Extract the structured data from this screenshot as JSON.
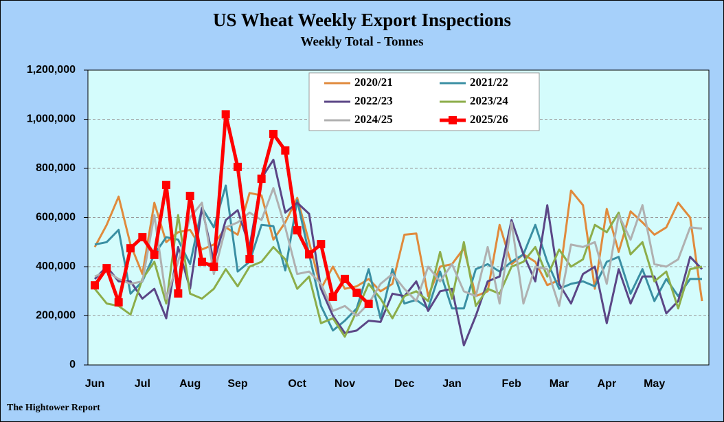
{
  "chart_data": {
    "type": "line",
    "title": "US Wheat Weekly Export Inspections",
    "subtitle": "Weekly Total - Tonnes",
    "source": "The Hightower Report",
    "categories": [
      "Jun",
      null,
      null,
      null,
      "Jul",
      null,
      null,
      null,
      "Aug",
      null,
      null,
      null,
      "Sep",
      null,
      null,
      null,
      null,
      "Oct",
      null,
      null,
      null,
      "Nov",
      null,
      null,
      null,
      null,
      "Dec",
      null,
      null,
      null,
      "Jan",
      null,
      null,
      null,
      null,
      "Feb",
      null,
      null,
      null,
      "Mar",
      null,
      null,
      null,
      "Apr",
      null,
      null,
      null,
      "May",
      null,
      null,
      null,
      null
    ],
    "ylim": [
      0,
      1200000
    ],
    "yticks": [
      0,
      {
        "value": 200000,
        "label": "200,000"
      },
      {
        "value": 400000,
        "label": "400,000"
      },
      {
        "value": 600000,
        "label": "600,000"
      },
      {
        "value": 800000,
        "label": "800,000"
      },
      {
        "value": 1000000,
        "label": "1,000,000"
      },
      {
        "value": 1200000,
        "label": "1,200,000"
      }
    ],
    "grid": true,
    "legend": "top",
    "series": [
      {
        "name": "2020/21",
        "color": "#e08a3c",
        "values": [
          480000,
          570000,
          685000,
          490000,
          370000,
          660000,
          500000,
          540000,
          550000,
          470000,
          490000,
          560000,
          530000,
          700000,
          690000,
          510000,
          580000,
          680000,
          500000,
          310000,
          400000,
          310000,
          320000,
          350000,
          300000,
          330000,
          530000,
          535000,
          280000,
          400000,
          410000,
          475000,
          280000,
          300000,
          570000,
          410000,
          450000,
          420000,
          325000,
          345000,
          710000,
          650000,
          310000,
          635000,
          460000,
          625000,
          580000,
          530000,
          560000,
          660000,
          600000,
          260000
        ]
      },
      {
        "name": "2021/22",
        "color": "#3a8fa3",
        "values": [
          490000,
          500000,
          550000,
          290000,
          340000,
          450000,
          520000,
          510000,
          410000,
          640000,
          560000,
          730000,
          380000,
          420000,
          570000,
          565000,
          385000,
          670000,
          450000,
          240000,
          140000,
          180000,
          230000,
          390000,
          190000,
          390000,
          250000,
          265000,
          230000,
          380000,
          230000,
          230000,
          390000,
          410000,
          380000,
          420000,
          450000,
          570000,
          420000,
          310000,
          330000,
          340000,
          320000,
          420000,
          440000,
          290000,
          390000,
          260000,
          350000,
          280000,
          350000,
          350000
        ]
      },
      {
        "name": "2022/23",
        "color": "#5b4686",
        "values": [
          350000,
          400000,
          340000,
          340000,
          270000,
          310000,
          190000,
          480000,
          310000,
          640000,
          420000,
          590000,
          630000,
          480000,
          760000,
          835000,
          620000,
          660000,
          615000,
          310000,
          200000,
          130000,
          140000,
          180000,
          175000,
          290000,
          280000,
          340000,
          220000,
          300000,
          310000,
          80000,
          200000,
          340000,
          360000,
          590000,
          450000,
          340000,
          650000,
          330000,
          250000,
          370000,
          400000,
          170000,
          390000,
          250000,
          360000,
          360000,
          210000,
          260000,
          440000,
          390000
        ]
      },
      {
        "name": "2023/24",
        "color": "#8cad4a",
        "values": [
          310000,
          250000,
          240000,
          205000,
          350000,
          420000,
          250000,
          610000,
          290000,
          270000,
          310000,
          390000,
          320000,
          400000,
          420000,
          480000,
          430000,
          310000,
          360000,
          170000,
          190000,
          115000,
          220000,
          330000,
          270000,
          190000,
          280000,
          300000,
          260000,
          460000,
          270000,
          500000,
          240000,
          310000,
          290000,
          400000,
          420000,
          480000,
          360000,
          470000,
          400000,
          430000,
          570000,
          540000,
          620000,
          450000,
          500000,
          340000,
          380000,
          230000,
          390000,
          400000
        ]
      },
      {
        "name": "2024/25",
        "color": "#b0b0b0",
        "values": [
          360000,
          380000,
          350000,
          330000,
          340000,
          610000,
          270000,
          420000,
          600000,
          660000,
          370000,
          560000,
          580000,
          620000,
          590000,
          720000,
          560000,
          370000,
          380000,
          330000,
          220000,
          240000,
          200000,
          250000,
          330000,
          370000,
          310000,
          260000,
          400000,
          340000,
          410000,
          300000,
          280000,
          480000,
          250000,
          580000,
          250000,
          400000,
          390000,
          240000,
          490000,
          480000,
          500000,
          330000,
          610000,
          510000,
          650000,
          410000,
          400000,
          430000,
          560000,
          555000
        ]
      },
      {
        "name": "2025/26",
        "color": "#ff0000",
        "values": [
          324000,
          394000,
          255000,
          475000,
          520000,
          448000,
          733000,
          291000,
          688000,
          420000,
          400000,
          1020000,
          806000,
          431000,
          758000,
          940000,
          873000,
          548000,
          450000,
          492000,
          277000,
          350000,
          294000,
          249000,
          null,
          null,
          null,
          null,
          null,
          null,
          null,
          null,
          null,
          null,
          null,
          null,
          null,
          null,
          null,
          null,
          null,
          null,
          null,
          null,
          null,
          null,
          null,
          null,
          null,
          null,
          null,
          null
        ]
      }
    ]
  }
}
